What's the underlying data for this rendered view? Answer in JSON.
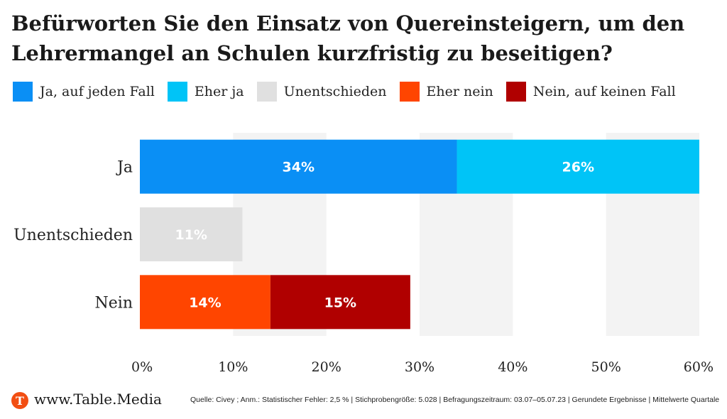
{
  "legend": [
    {
      "label": "Ja, auf jeden Fall",
      "color": "#0a8ff5"
    },
    {
      "label": "Eher ja",
      "color": "#00c4f7"
    },
    {
      "label": "Unentschieden",
      "color": "#e0e0e0"
    },
    {
      "label": "Eher nein",
      "color": "#ff4500"
    },
    {
      "label": "Nein, auf keinen Fall",
      "color": "#b00000"
    }
  ],
  "chart_data": {
    "type": "bar",
    "orientation": "horizontal",
    "stacked": true,
    "title": "Befürworten Sie den Einsatz von Quereinsteigern, um den Lehrermangel an Schulen kurzfristig zu beseitigen?",
    "categories": [
      "Ja",
      "Unentschieden",
      "Nein"
    ],
    "series": [
      {
        "name": "Ja, auf jeden Fall",
        "values": [
          34,
          0,
          0
        ],
        "labels": [
          "34%",
          "",
          ""
        ]
      },
      {
        "name": "Eher ja",
        "values": [
          26,
          0,
          0
        ],
        "labels": [
          "26%",
          "",
          ""
        ]
      },
      {
        "name": "Unentschieden",
        "values": [
          0,
          11,
          0
        ],
        "labels": [
          "",
          "11%",
          ""
        ]
      },
      {
        "name": "Eher nein",
        "values": [
          0,
          0,
          14
        ],
        "labels": [
          "",
          "",
          "14%"
        ]
      },
      {
        "name": "Nein, auf keinen Fall",
        "values": [
          0,
          0,
          15
        ],
        "labels": [
          "",
          "",
          "15%"
        ]
      }
    ],
    "xlim": [
      0,
      60
    ],
    "xticks": [
      0,
      10,
      20,
      30,
      40,
      50,
      60
    ],
    "xtick_labels": [
      "0%",
      "10%",
      "20%",
      "30%",
      "40%",
      "50%",
      "60%"
    ],
    "grid": "alternating vertical bands",
    "legend_position": "top"
  },
  "footer": {
    "logo_letter": "T",
    "site": "www.Table.Media",
    "source": "Quelle: Civey ; Anm.: Statistischer Fehler: 2,5 % | Stichprobengröße: 5.028 | Befragungszeitraum: 03.07–05.07.23 | Gerundete Ergebnisse | Mittelwerte Quartale"
  }
}
